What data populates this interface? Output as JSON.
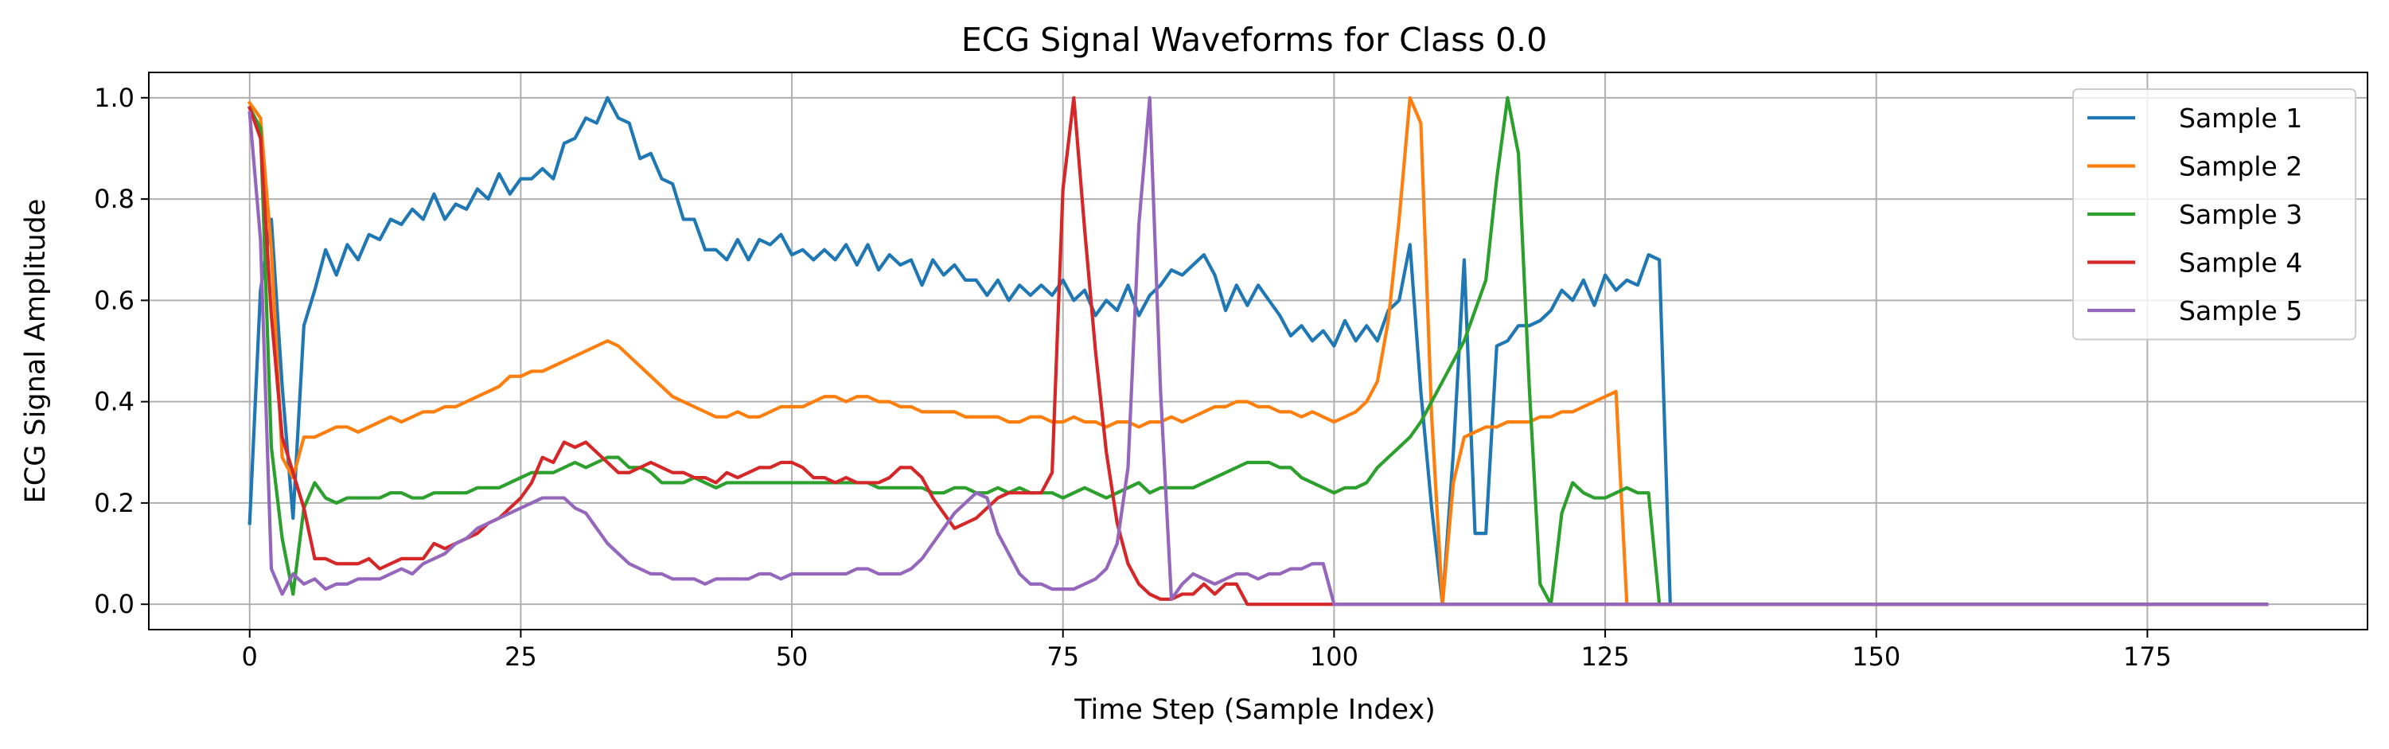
{
  "chart_data": {
    "type": "line",
    "title": "ECG Signal Waveforms for Class 0.0",
    "xlabel": "Time Step (Sample Index)",
    "ylabel": "ECG Signal Amplitude",
    "xlim": [
      -9.3,
      195.3
    ],
    "ylim": [
      -0.05,
      1.05
    ],
    "xticks": [
      0,
      25,
      50,
      75,
      100,
      125,
      150,
      175
    ],
    "yticks": [
      0.0,
      0.2,
      0.4,
      0.6,
      0.8,
      1.0
    ],
    "xtick_labels": [
      "0",
      "25",
      "50",
      "75",
      "100",
      "125",
      "150",
      "175"
    ],
    "ytick_labels": [
      "0.0",
      "0.2",
      "0.4",
      "0.6",
      "0.8",
      "1.0"
    ],
    "grid": true,
    "legend_position": "top-right",
    "x_max": 186,
    "series": [
      {
        "name": "Sample 1",
        "color": "#1f77b4",
        "values": [
          0.16,
          0.62,
          0.76,
          0.43,
          0.17,
          0.55,
          0.62,
          0.7,
          0.65,
          0.71,
          0.68,
          0.73,
          0.72,
          0.76,
          0.75,
          0.78,
          0.76,
          0.81,
          0.76,
          0.79,
          0.78,
          0.82,
          0.8,
          0.85,
          0.81,
          0.84,
          0.84,
          0.86,
          0.84,
          0.91,
          0.92,
          0.96,
          0.95,
          1.0,
          0.96,
          0.95,
          0.88,
          0.89,
          0.84,
          0.83,
          0.76,
          0.76,
          0.7,
          0.7,
          0.68,
          0.72,
          0.68,
          0.72,
          0.71,
          0.73,
          0.69,
          0.7,
          0.68,
          0.7,
          0.68,
          0.71,
          0.67,
          0.71,
          0.66,
          0.69,
          0.67,
          0.68,
          0.63,
          0.68,
          0.65,
          0.67,
          0.64,
          0.64,
          0.61,
          0.64,
          0.6,
          0.63,
          0.61,
          0.63,
          0.61,
          0.64,
          0.6,
          0.62,
          0.57,
          0.6,
          0.58,
          0.63,
          0.57,
          0.61,
          0.63,
          0.66,
          0.65,
          0.67,
          0.69,
          0.65,
          0.58,
          0.63,
          0.59,
          0.63,
          0.6,
          0.57,
          0.53,
          0.55,
          0.52,
          0.54,
          0.51,
          0.56,
          0.52,
          0.55,
          0.52,
          0.58,
          0.6,
          0.71,
          0.42,
          0.19,
          0.0,
          0.3,
          0.68,
          0.14,
          0.14,
          0.51,
          0.52,
          0.55,
          0.55,
          0.56,
          0.58,
          0.62,
          0.6,
          0.64,
          0.59,
          0.65,
          0.62,
          0.64,
          0.63,
          0.69,
          0.68,
          0.0,
          0,
          0,
          0,
          0,
          0,
          0,
          0,
          0,
          0,
          0,
          0,
          0,
          0,
          0,
          0,
          0,
          0,
          0,
          0,
          0,
          0,
          0,
          0,
          0,
          0,
          0,
          0,
          0,
          0,
          0,
          0,
          0,
          0,
          0,
          0,
          0,
          0,
          0,
          0,
          0,
          0,
          0,
          0,
          0,
          0,
          0,
          0,
          0,
          0,
          0,
          0,
          0,
          0,
          0,
          0,
          0,
          0,
          0,
          0,
          0,
          0,
          0
        ]
      },
      {
        "name": "Sample 2",
        "color": "#ff7f0e",
        "values": [
          0.99,
          0.96,
          0.7,
          0.29,
          0.25,
          0.33,
          0.33,
          0.34,
          0.35,
          0.35,
          0.34,
          0.35,
          0.36,
          0.37,
          0.36,
          0.37,
          0.38,
          0.38,
          0.39,
          0.39,
          0.4,
          0.41,
          0.42,
          0.43,
          0.45,
          0.45,
          0.46,
          0.46,
          0.47,
          0.48,
          0.49,
          0.5,
          0.51,
          0.52,
          0.51,
          0.49,
          0.47,
          0.45,
          0.43,
          0.41,
          0.4,
          0.39,
          0.38,
          0.37,
          0.37,
          0.38,
          0.37,
          0.37,
          0.38,
          0.39,
          0.39,
          0.39,
          0.4,
          0.41,
          0.41,
          0.4,
          0.41,
          0.41,
          0.4,
          0.4,
          0.39,
          0.39,
          0.38,
          0.38,
          0.38,
          0.38,
          0.37,
          0.37,
          0.37,
          0.37,
          0.36,
          0.36,
          0.37,
          0.37,
          0.36,
          0.36,
          0.37,
          0.36,
          0.36,
          0.35,
          0.36,
          0.36,
          0.35,
          0.36,
          0.36,
          0.37,
          0.36,
          0.37,
          0.38,
          0.39,
          0.39,
          0.4,
          0.4,
          0.39,
          0.39,
          0.38,
          0.38,
          0.37,
          0.38,
          0.37,
          0.36,
          0.37,
          0.38,
          0.4,
          0.44,
          0.56,
          0.76,
          1.0,
          0.95,
          0.37,
          0.0,
          0.24,
          0.33,
          0.34,
          0.35,
          0.35,
          0.36,
          0.36,
          0.36,
          0.37,
          0.37,
          0.38,
          0.38,
          0.39,
          0.4,
          0.41,
          0.42,
          0.0,
          0,
          0,
          0,
          0,
          0,
          0,
          0,
          0,
          0,
          0,
          0,
          0,
          0,
          0,
          0,
          0,
          0,
          0,
          0,
          0,
          0,
          0,
          0,
          0,
          0,
          0,
          0,
          0,
          0,
          0,
          0,
          0,
          0,
          0,
          0,
          0,
          0,
          0,
          0,
          0,
          0,
          0,
          0,
          0,
          0,
          0,
          0,
          0,
          0,
          0,
          0,
          0,
          0,
          0,
          0,
          0,
          0,
          0,
          0,
          0,
          0,
          0,
          0,
          0,
          0,
          0
        ]
      },
      {
        "name": "Sample 3",
        "color": "#2ca02c",
        "values": [
          0.98,
          0.94,
          0.31,
          0.13,
          0.02,
          0.19,
          0.24,
          0.21,
          0.2,
          0.21,
          0.21,
          0.21,
          0.21,
          0.22,
          0.22,
          0.21,
          0.21,
          0.22,
          0.22,
          0.22,
          0.22,
          0.23,
          0.23,
          0.23,
          0.24,
          0.25,
          0.26,
          0.26,
          0.26,
          0.27,
          0.28,
          0.27,
          0.28,
          0.29,
          0.29,
          0.27,
          0.27,
          0.26,
          0.24,
          0.24,
          0.24,
          0.25,
          0.24,
          0.23,
          0.24,
          0.24,
          0.24,
          0.24,
          0.24,
          0.24,
          0.24,
          0.24,
          0.24,
          0.24,
          0.24,
          0.24,
          0.24,
          0.24,
          0.23,
          0.23,
          0.23,
          0.23,
          0.23,
          0.22,
          0.22,
          0.23,
          0.23,
          0.22,
          0.22,
          0.23,
          0.22,
          0.23,
          0.22,
          0.22,
          0.22,
          0.21,
          0.22,
          0.23,
          0.22,
          0.21,
          0.22,
          0.23,
          0.24,
          0.22,
          0.23,
          0.23,
          0.23,
          0.23,
          0.24,
          0.25,
          0.26,
          0.27,
          0.28,
          0.28,
          0.28,
          0.27,
          0.27,
          0.25,
          0.24,
          0.23,
          0.22,
          0.23,
          0.23,
          0.24,
          0.27,
          0.29,
          0.31,
          0.33,
          0.36,
          0.4,
          0.44,
          0.48,
          0.52,
          0.58,
          0.64,
          0.84,
          1.0,
          0.89,
          0.43,
          0.04,
          0.0,
          0.18,
          0.24,
          0.22,
          0.21,
          0.21,
          0.22,
          0.23,
          0.22,
          0.22,
          0.0,
          0,
          0,
          0,
          0,
          0,
          0,
          0,
          0,
          0,
          0,
          0,
          0,
          0,
          0,
          0,
          0,
          0,
          0,
          0,
          0,
          0,
          0,
          0,
          0,
          0,
          0,
          0,
          0,
          0,
          0,
          0,
          0,
          0,
          0,
          0,
          0,
          0,
          0,
          0,
          0,
          0,
          0,
          0,
          0,
          0,
          0,
          0,
          0,
          0,
          0,
          0,
          0,
          0,
          0,
          0,
          0,
          0,
          0
        ]
      },
      {
        "name": "Sample 4",
        "color": "#d62728",
        "values": [
          0.98,
          0.92,
          0.57,
          0.33,
          0.26,
          0.19,
          0.09,
          0.09,
          0.08,
          0.08,
          0.08,
          0.09,
          0.07,
          0.08,
          0.09,
          0.09,
          0.09,
          0.12,
          0.11,
          0.12,
          0.13,
          0.14,
          0.16,
          0.17,
          0.19,
          0.21,
          0.24,
          0.29,
          0.28,
          0.32,
          0.31,
          0.32,
          0.3,
          0.28,
          0.26,
          0.26,
          0.27,
          0.28,
          0.27,
          0.26,
          0.26,
          0.25,
          0.25,
          0.24,
          0.26,
          0.25,
          0.26,
          0.27,
          0.27,
          0.28,
          0.28,
          0.27,
          0.25,
          0.25,
          0.24,
          0.25,
          0.24,
          0.24,
          0.24,
          0.25,
          0.27,
          0.27,
          0.25,
          0.21,
          0.18,
          0.15,
          0.16,
          0.17,
          0.19,
          0.21,
          0.22,
          0.22,
          0.22,
          0.22,
          0.26,
          0.82,
          1.0,
          0.74,
          0.5,
          0.3,
          0.16,
          0.08,
          0.04,
          0.02,
          0.01,
          0.01,
          0.02,
          0.02,
          0.04,
          0.02,
          0.04,
          0.04,
          0.0,
          0.0,
          0.0,
          0.0,
          0.0,
          0.0,
          0.0,
          0.0,
          0.0,
          0.0,
          0.0,
          0.0,
          0.0,
          0.0,
          0.0,
          0.0,
          0.0,
          0.0,
          0.0,
          0.0,
          0.0,
          0.0,
          0.0,
          0.0,
          0.0,
          0.0,
          0.0,
          0.0,
          0,
          0,
          0,
          0,
          0,
          0,
          0,
          0,
          0,
          0,
          0,
          0,
          0,
          0,
          0,
          0,
          0,
          0,
          0,
          0,
          0,
          0,
          0,
          0,
          0,
          0,
          0,
          0,
          0,
          0,
          0,
          0,
          0,
          0,
          0,
          0,
          0,
          0,
          0,
          0,
          0,
          0,
          0,
          0,
          0,
          0,
          0,
          0,
          0,
          0,
          0,
          0,
          0,
          0,
          0,
          0,
          0,
          0,
          0,
          0,
          0,
          0,
          0,
          0,
          0,
          0,
          0,
          0
        ]
      },
      {
        "name": "Sample 5",
        "color": "#9467bd",
        "values": [
          0.97,
          0.72,
          0.07,
          0.02,
          0.06,
          0.04,
          0.05,
          0.03,
          0.04,
          0.04,
          0.05,
          0.05,
          0.05,
          0.06,
          0.07,
          0.06,
          0.08,
          0.09,
          0.1,
          0.12,
          0.13,
          0.15,
          0.16,
          0.17,
          0.18,
          0.19,
          0.2,
          0.21,
          0.21,
          0.21,
          0.19,
          0.18,
          0.15,
          0.12,
          0.1,
          0.08,
          0.07,
          0.06,
          0.06,
          0.05,
          0.05,
          0.05,
          0.04,
          0.05,
          0.05,
          0.05,
          0.05,
          0.06,
          0.06,
          0.05,
          0.06,
          0.06,
          0.06,
          0.06,
          0.06,
          0.06,
          0.07,
          0.07,
          0.06,
          0.06,
          0.06,
          0.07,
          0.09,
          0.12,
          0.15,
          0.18,
          0.2,
          0.22,
          0.21,
          0.14,
          0.1,
          0.06,
          0.04,
          0.04,
          0.03,
          0.03,
          0.03,
          0.04,
          0.05,
          0.07,
          0.12,
          0.27,
          0.75,
          1.0,
          0.42,
          0.01,
          0.04,
          0.06,
          0.05,
          0.04,
          0.05,
          0.06,
          0.06,
          0.05,
          0.06,
          0.06,
          0.07,
          0.07,
          0.08,
          0.08,
          0.0,
          0,
          0,
          0,
          0,
          0,
          0,
          0,
          0,
          0,
          0,
          0,
          0,
          0,
          0,
          0,
          0,
          0,
          0,
          0,
          0,
          0,
          0,
          0,
          0,
          0,
          0,
          0,
          0,
          0,
          0,
          0,
          0,
          0,
          0,
          0,
          0,
          0,
          0,
          0,
          0,
          0,
          0,
          0,
          0,
          0,
          0,
          0,
          0,
          0,
          0,
          0,
          0,
          0,
          0,
          0,
          0,
          0,
          0,
          0,
          0,
          0,
          0,
          0,
          0,
          0,
          0,
          0,
          0,
          0,
          0,
          0,
          0,
          0,
          0,
          0,
          0,
          0,
          0,
          0,
          0,
          0,
          0,
          0,
          0,
          0,
          0,
          0,
          0,
          0,
          0
        ]
      }
    ]
  }
}
